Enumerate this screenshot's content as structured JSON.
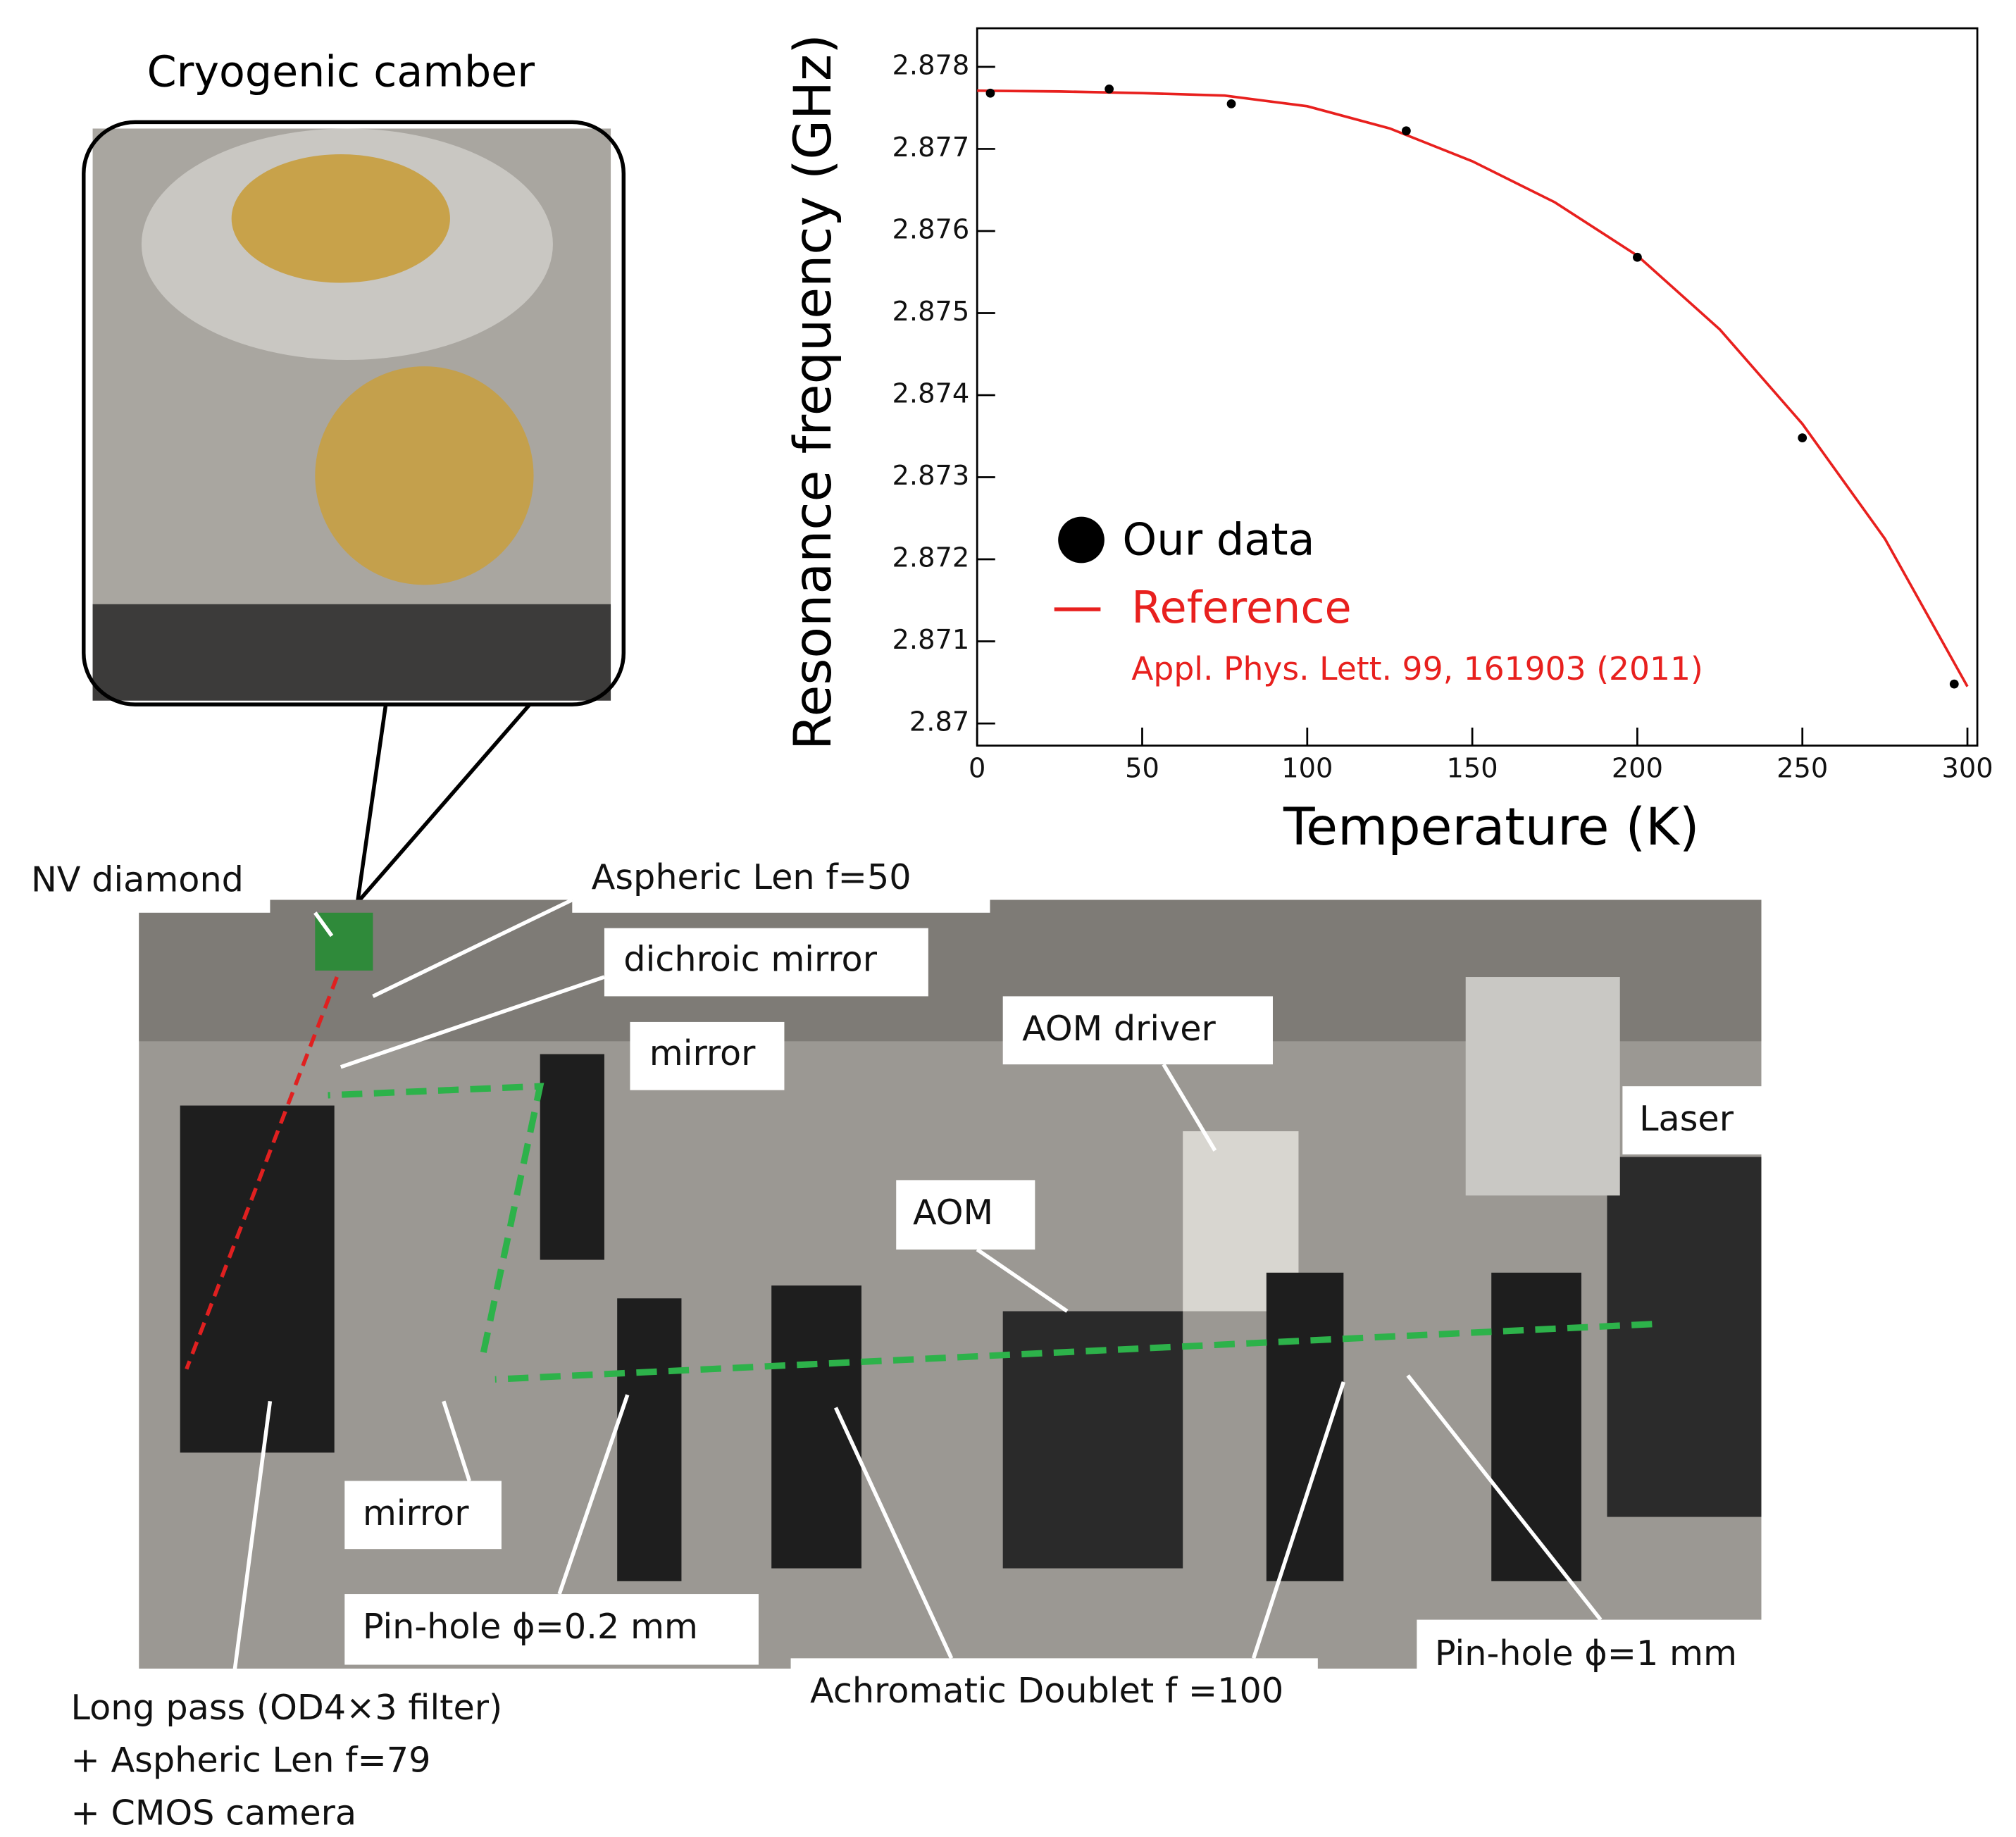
{
  "inset_title": "Cryogenic camber",
  "setup_labels": [
    "NV diamond",
    "Aspheric Len f=50",
    "dichroic mirror",
    "mirror",
    "AOM driver",
    "Laser",
    "AOM",
    "mirror",
    "Pin-hole ϕ=0.2 mm",
    "Achromatic Doublet f =100",
    "Pin-hole ϕ=1 mm"
  ],
  "camera_label": [
    "Long pass (OD4×3 filter)",
    "+ Aspheric Len f=79",
    "+ CMOS camera"
  ],
  "chart_data": {
    "type": "scatter",
    "x_label": "Temperature (K)",
    "y_label": "Resonance frequency (GHz)",
    "annotation": "Appl. Phys. Lett. 99, 161903 (2011)",
    "xlim": [
      0,
      303
    ],
    "ylim": [
      2.86973,
      2.87847
    ],
    "xticks": [
      0,
      50,
      100,
      150,
      200,
      250,
      300
    ],
    "yticks": [
      2.87,
      2.871,
      2.872,
      2.873,
      2.874,
      2.875,
      2.876,
      2.877,
      2.878
    ],
    "series": [
      {
        "name": "Our data",
        "color": "#000000",
        "x": [
          4,
          40,
          77,
          130,
          200,
          250,
          296
        ],
        "values": [
          2.87768,
          2.87773,
          2.87755,
          2.87722,
          2.87568,
          2.87348,
          2.87048
        ]
      },
      {
        "name": "Reference",
        "color": "#e8201e",
        "x": [
          0,
          25,
          50,
          75,
          100,
          125,
          150,
          175,
          200,
          225,
          250,
          275,
          300
        ],
        "values": [
          2.87771,
          2.8777,
          2.87768,
          2.87765,
          2.87752,
          2.87725,
          2.87685,
          2.87635,
          2.8757,
          2.8748,
          2.87365,
          2.87225,
          2.87045
        ]
      }
    ]
  }
}
